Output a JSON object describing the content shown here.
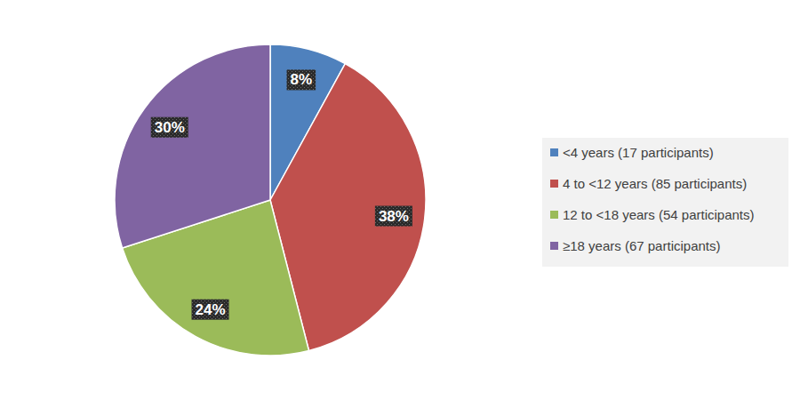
{
  "chart_data": {
    "type": "pie",
    "categories": [
      "<4 years (17 participants)",
      "4 to <12 years (85 participants)",
      "12 to <18 years (54 participants)",
      "≥18 years (67 participants)"
    ],
    "values": [
      8,
      38,
      24,
      30
    ],
    "value_labels": [
      "8%",
      "38%",
      "24%",
      "30%"
    ],
    "colors": [
      "#4f81bd",
      "#c0504d",
      "#9bbb59",
      "#8064a2"
    ],
    "data_labels": true,
    "legend": "right"
  }
}
